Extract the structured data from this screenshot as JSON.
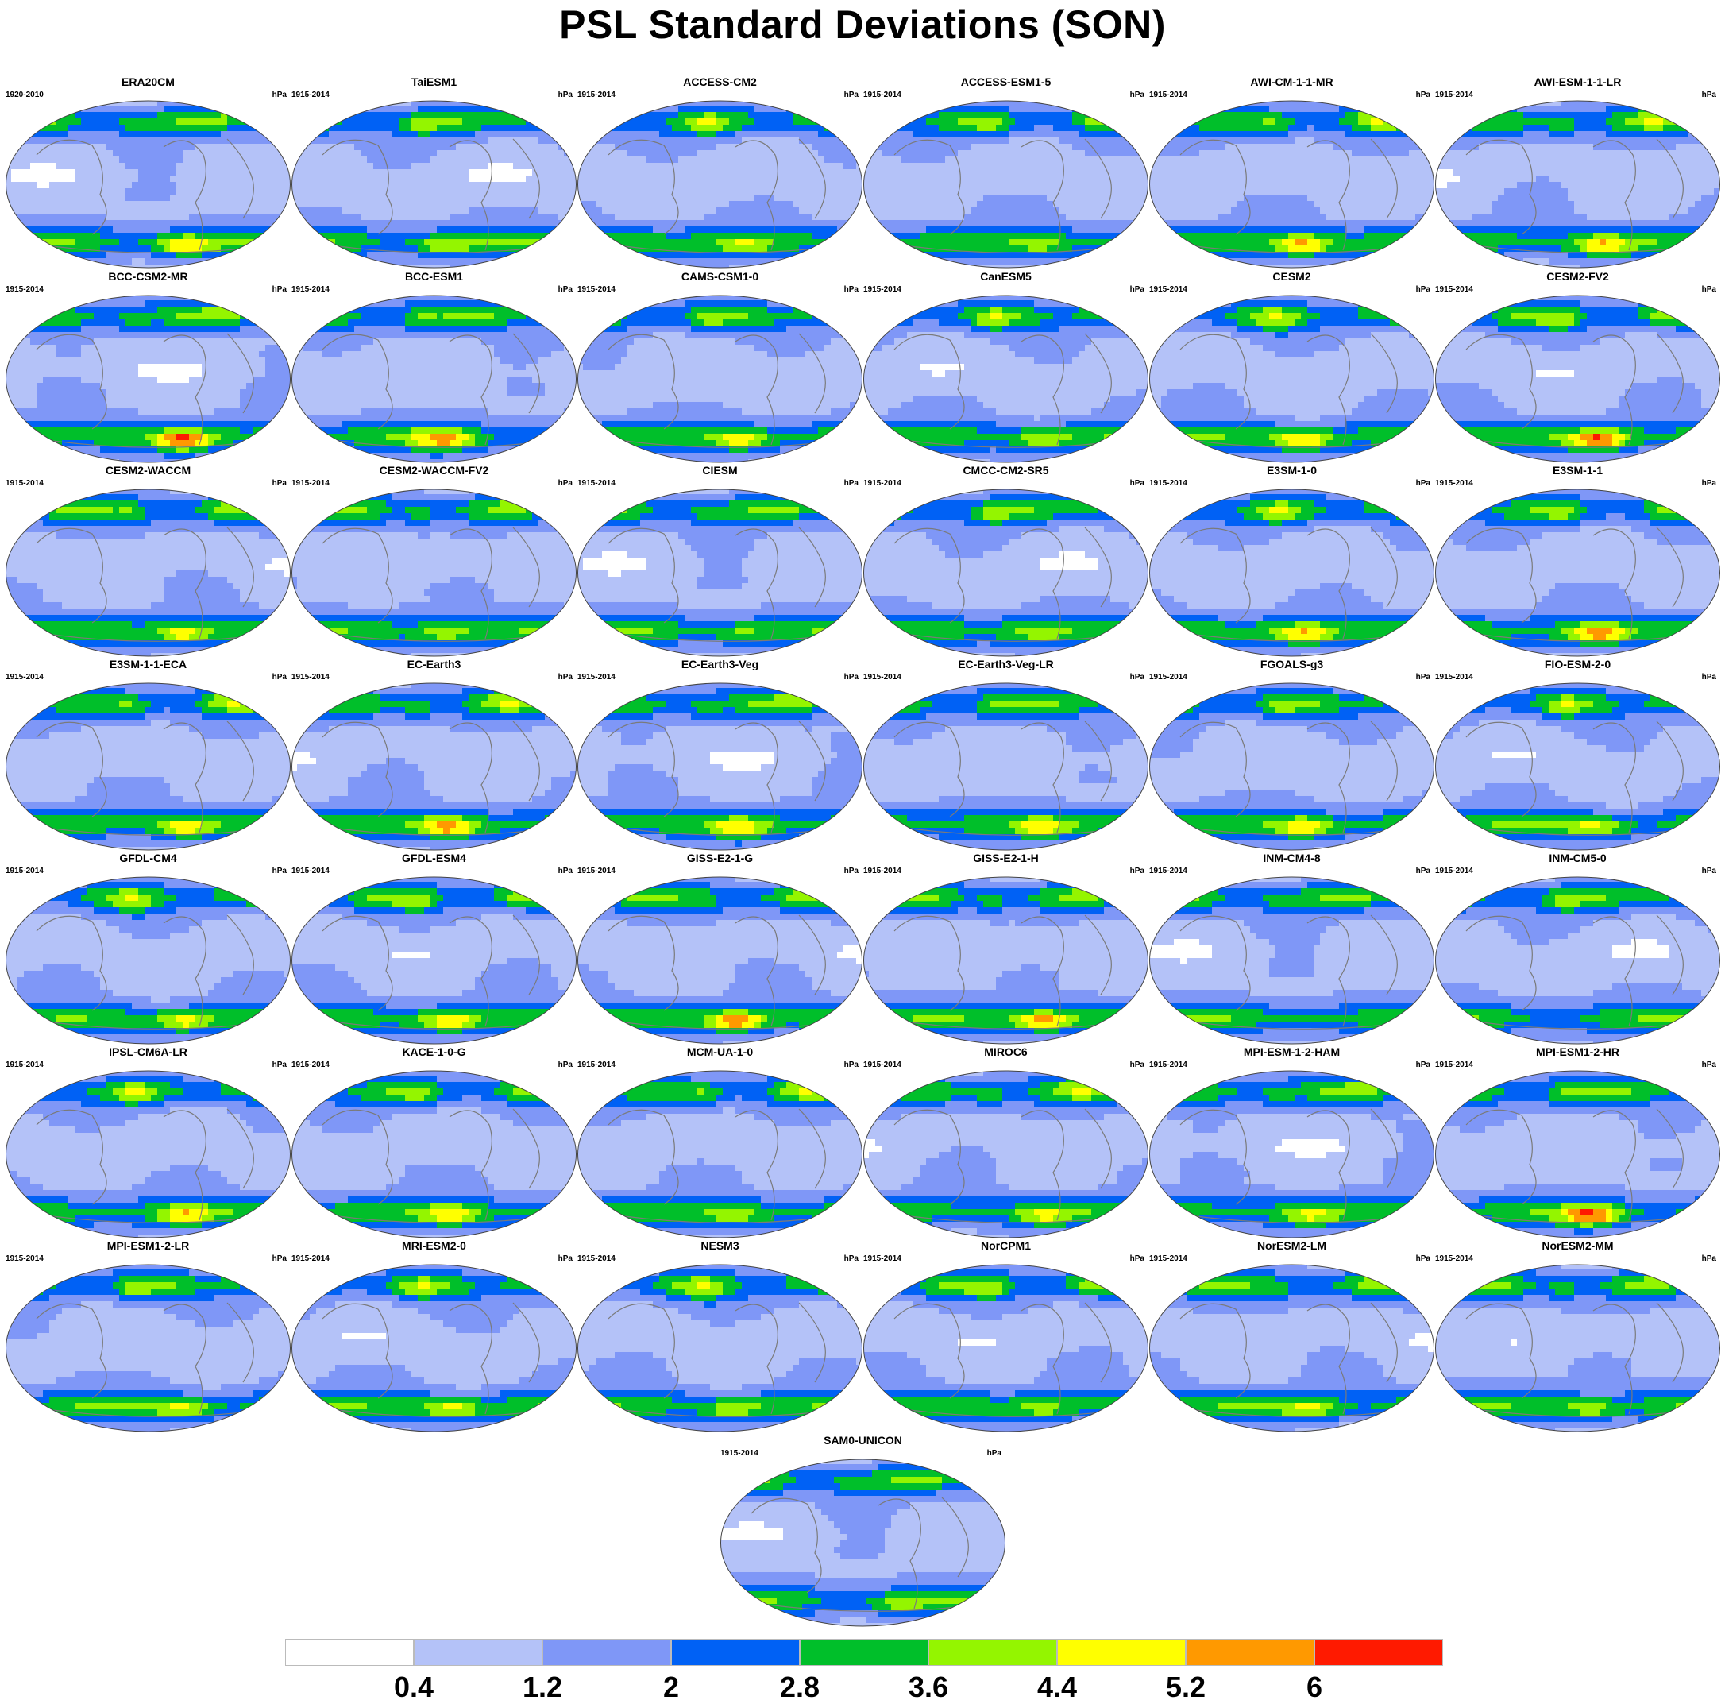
{
  "title": "PSL Standard Deviations (SON)",
  "chart_data": {
    "type": "heatmap",
    "title": "PSL Standard Deviations (SON)",
    "projection": "global map, Pacific-centred",
    "units": "hPa",
    "colorbar": {
      "colors": [
        "#ffffff",
        "#b4c2f8",
        "#7f97f7",
        "#0061f5",
        "#00bf2a",
        "#94f500",
        "#ffff00",
        "#ff9900",
        "#ff1a00"
      ],
      "tick_labels": [
        "0.4",
        "1.2",
        "2",
        "2.8",
        "3.6",
        "4.4",
        "5.2",
        "6"
      ]
    },
    "panels": [
      {
        "name": "ERA20CM",
        "period": "1920-2010",
        "unit": "hPa",
        "sh_max": 6.0
      },
      {
        "name": "TaiESM1",
        "period": "1915-2014",
        "unit": "hPa",
        "sh_max": 5.0
      },
      {
        "name": "ACCESS-CM2",
        "period": "1915-2014",
        "unit": "hPa",
        "sh_max": 5.0
      },
      {
        "name": "ACCESS-ESM1-5",
        "period": "1915-2014",
        "unit": "hPa",
        "sh_max": 4.6
      },
      {
        "name": "AWI-CM-1-1-MR",
        "period": "1915-2014",
        "unit": "hPa",
        "sh_max": 6.1
      },
      {
        "name": "AWI-ESM-1-1-LR",
        "period": "1915-2014",
        "unit": "hPa",
        "sh_max": 5.8
      },
      {
        "name": "BCC-CSM2-MR",
        "period": "1915-2014",
        "unit": "hPa",
        "sh_max": 6.8
      },
      {
        "name": "BCC-ESM1",
        "period": "1915-2014",
        "unit": "hPa",
        "sh_max": 5.9
      },
      {
        "name": "CAMS-CSM1-0",
        "period": "1915-2014",
        "unit": "hPa",
        "sh_max": 5.7
      },
      {
        "name": "CanESM5",
        "period": "1915-2014",
        "unit": "hPa",
        "sh_max": 5.0
      },
      {
        "name": "CESM2",
        "period": "1915-2014",
        "unit": "hPa",
        "sh_max": 6.1
      },
      {
        "name": "CESM2-FV2",
        "period": "1915-2014",
        "unit": "hPa",
        "sh_max": 6.7
      },
      {
        "name": "CESM2-WACCM",
        "period": "1915-2014",
        "unit": "hPa",
        "sh_max": 5.7
      },
      {
        "name": "CESM2-WACCM-FV2",
        "period": "1915-2014",
        "unit": "hPa",
        "sh_max": 5.0
      },
      {
        "name": "CIESM",
        "period": "1915-2014",
        "unit": "hPa",
        "sh_max": 4.6
      },
      {
        "name": "CMCC-CM2-SR5",
        "period": "1915-2014",
        "unit": "hPa",
        "sh_max": 4.7
      },
      {
        "name": "E3SM-1-0",
        "period": "1915-2014",
        "unit": "hPa",
        "sh_max": 5.8
      },
      {
        "name": "E3SM-1-1",
        "period": "1915-2014",
        "unit": "hPa",
        "sh_max": 6.3
      },
      {
        "name": "E3SM-1-1-ECA",
        "period": "1915-2014",
        "unit": "hPa",
        "sh_max": 5.7
      },
      {
        "name": "EC-Earth3",
        "period": "1915-2014",
        "unit": "hPa",
        "sh_max": 6.1
      },
      {
        "name": "EC-Earth3-Veg",
        "period": "1915-2014",
        "unit": "hPa",
        "sh_max": 5.6
      },
      {
        "name": "EC-Earth3-Veg-LR",
        "period": "1915-2014",
        "unit": "hPa",
        "sh_max": 5.6
      },
      {
        "name": "FGOALS-g3",
        "period": "1915-2014",
        "unit": "hPa",
        "sh_max": 5.8
      },
      {
        "name": "FIO-ESM-2-0",
        "period": "1915-2014",
        "unit": "hPa",
        "sh_max": 5.3
      },
      {
        "name": "GFDL-CM4",
        "period": "1915-2014",
        "unit": "hPa",
        "sh_max": 5.5
      },
      {
        "name": "GFDL-ESM4",
        "period": "1915-2014",
        "unit": "hPa",
        "sh_max": 5.6
      },
      {
        "name": "GISS-E2-1-G",
        "period": "1915-2014",
        "unit": "hPa",
        "sh_max": 6.5
      },
      {
        "name": "GISS-E2-1-H",
        "period": "1915-2014",
        "unit": "hPa",
        "sh_max": 6.6
      },
      {
        "name": "INM-CM4-8",
        "period": "1915-2014",
        "unit": "hPa",
        "sh_max": 3.6
      },
      {
        "name": "INM-CM5-0",
        "period": "1915-2014",
        "unit": "hPa",
        "sh_max": 3.6
      },
      {
        "name": "IPSL-CM6A-LR",
        "period": "1915-2014",
        "unit": "hPa",
        "sh_max": 5.6
      },
      {
        "name": "KACE-1-0-G",
        "period": "1915-2014",
        "unit": "hPa",
        "sh_max": 5.7
      },
      {
        "name": "MCM-UA-1-0",
        "period": "1915-2014",
        "unit": "hPa",
        "sh_max": 4.7
      },
      {
        "name": "MIROC6",
        "period": "1915-2014",
        "unit": "hPa",
        "sh_max": 5.1
      },
      {
        "name": "MPI-ESM-1-2-HAM",
        "period": "1915-2014",
        "unit": "hPa",
        "sh_max": 5.1
      },
      {
        "name": "MPI-ESM1-2-HR",
        "period": "1915-2014",
        "unit": "hPa",
        "sh_max": 6.6
      },
      {
        "name": "MPI-ESM1-2-LR",
        "period": "1915-2014",
        "unit": "hPa",
        "sh_max": 5.5
      },
      {
        "name": "MRI-ESM2-0",
        "period": "1915-2014",
        "unit": "hPa",
        "sh_max": 5.5
      },
      {
        "name": "NESM3",
        "period": "1915-2014",
        "unit": "hPa",
        "sh_max": 5.0
      },
      {
        "name": "NorCPM1",
        "period": "1915-2014",
        "unit": "hPa",
        "sh_max": 4.7
      },
      {
        "name": "NorESM2-LM",
        "period": "1915-2014",
        "unit": "hPa",
        "sh_max": 5.3
      },
      {
        "name": "NorESM2-MM",
        "period": "1915-2014",
        "unit": "hPa",
        "sh_max": 5.0
      },
      {
        "name": "SAM0-UNICON",
        "period": "1915-2014",
        "unit": "hPa",
        "sh_max": 4.6
      }
    ]
  }
}
